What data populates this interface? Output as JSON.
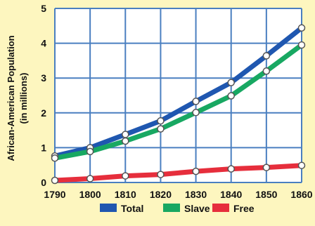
{
  "chart_data": {
    "type": "line",
    "ylabel": "African-American Population",
    "ylabel_sub": "(in millions)",
    "xlabel": "",
    "x": [
      "1790",
      "1800",
      "1810",
      "1820",
      "1830",
      "1840",
      "1850",
      "1860"
    ],
    "yticks": [
      "0",
      "1",
      "2",
      "3",
      "4",
      "5"
    ],
    "ylim": [
      0,
      5
    ],
    "grid": true,
    "legend_position": "bottom",
    "series": [
      {
        "name": "Total",
        "color": "#1f57b0",
        "values": [
          0.76,
          1.0,
          1.38,
          1.77,
          2.33,
          2.87,
          3.64,
          4.44
        ]
      },
      {
        "name": "Slave",
        "color": "#18a862",
        "values": [
          0.7,
          0.89,
          1.19,
          1.54,
          2.01,
          2.49,
          3.2,
          3.95
        ]
      },
      {
        "name": "Free",
        "color": "#e62e3c",
        "values": [
          0.06,
          0.11,
          0.19,
          0.23,
          0.32,
          0.39,
          0.43,
          0.49
        ]
      }
    ],
    "colors": {
      "background": "#fdf6bf",
      "plot_background": "#ffffff",
      "grid": "#4a7fc0"
    }
  }
}
